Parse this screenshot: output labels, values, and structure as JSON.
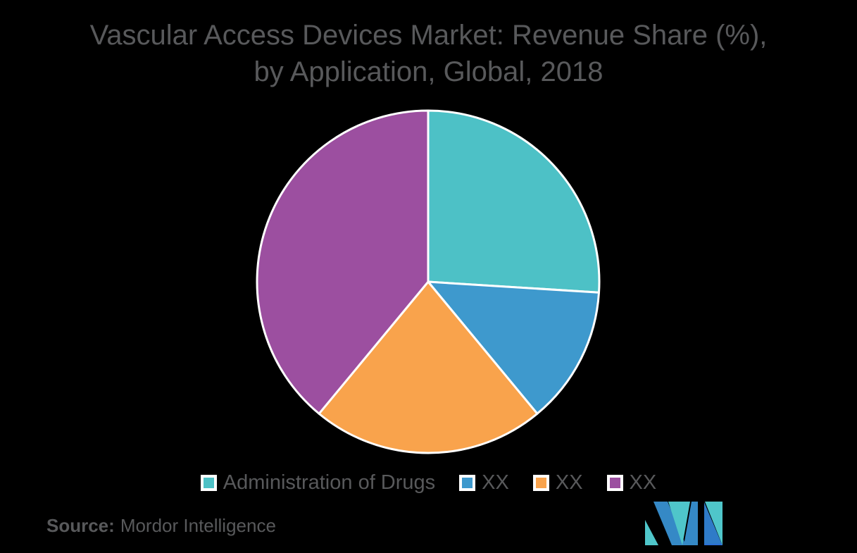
{
  "title": "Vascular Access Devices Market: Revenue Share (%), by Application, Global, 2018",
  "source": {
    "label": "Source:",
    "text": "Mordor Intelligence"
  },
  "colors": {
    "background": "#000000",
    "text_gray": "#58595B",
    "slice_border": "#FFFFFF"
  },
  "chart_data": {
    "type": "pie",
    "title": "Vascular Access Devices Market: Revenue Share (%), by Application, Global, 2018",
    "start_angle_deg": -90,
    "direction": "clockwise",
    "legend_position": "bottom",
    "series": [
      {
        "label": "Administration of Drugs",
        "value": 26,
        "color": "#4DC1C6"
      },
      {
        "label": "XX",
        "value": 13,
        "color": "#3E99CD"
      },
      {
        "label": "XX",
        "value": 22,
        "color": "#F9A34C"
      },
      {
        "label": "XX",
        "value": 39,
        "color": "#9C4FA0"
      }
    ]
  },
  "logo": {
    "name": "Mordor Intelligence logo",
    "colors": {
      "blue": "#3589C6",
      "teal": "#4FC6CA",
      "i_blue": "#2F7BC8",
      "accent": "#2A6FD6"
    }
  }
}
